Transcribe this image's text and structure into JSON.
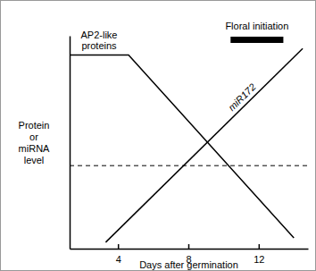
{
  "chart_data": {
    "type": "line",
    "xlabel": "Days after germination",
    "ylabel": "Protein or miRNA level",
    "xlim": [
      1.25,
      14.8
    ],
    "xticks": [
      4,
      8,
      12
    ],
    "ylim": [
      0,
      100
    ],
    "yticks": [],
    "tick_labels": "x",
    "threshold": 39,
    "annotations": [
      {
        "text": "Floral initiation",
        "x": [
          10.4,
          13.4
        ]
      }
    ],
    "series": [
      {
        "name": "AP2-like proteins",
        "color": "#000000",
        "x": [
          1.25,
          4.6,
          14.0
        ],
        "values": [
          91,
          91,
          5
        ]
      },
      {
        "name": "miR172",
        "color": "#000000",
        "x": [
          3.3,
          14.5
        ],
        "values": [
          3,
          94
        ]
      }
    ]
  }
}
